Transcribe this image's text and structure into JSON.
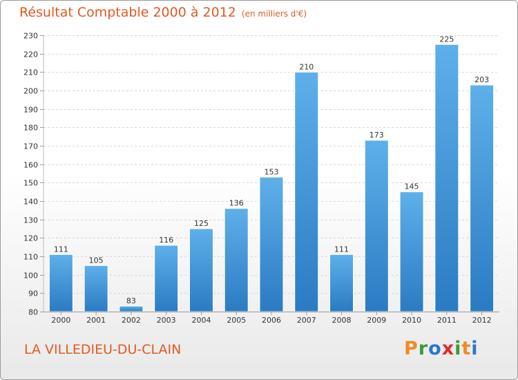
{
  "header": {
    "title": "Résultat Comptable 2000 à 2012",
    "subtitle": "(en milliers d'€)"
  },
  "footer": {
    "city": "LA VILLEDIEU-DU-CLAIN",
    "logo": {
      "letters": [
        "P",
        "r",
        "o",
        "x",
        "i",
        "t",
        "i"
      ],
      "colors": [
        "#f08a24",
        "#3a9a3a",
        "#2a78c8",
        "#e02a2a",
        "#3a9a3a",
        "#f08a24",
        "#2a78c8"
      ]
    }
  },
  "chart_data": {
    "type": "bar",
    "categories": [
      "2000",
      "2001",
      "2002",
      "2003",
      "2004",
      "2005",
      "2006",
      "2007",
      "2008",
      "2009",
      "2010",
      "2011",
      "2012"
    ],
    "values": [
      111,
      105,
      83,
      116,
      125,
      136,
      153,
      210,
      111,
      173,
      145,
      225,
      203
    ],
    "data_labels": [
      "111",
      "105",
      "83",
      "116",
      "125",
      "136",
      "153",
      "210",
      "111",
      "173",
      "145",
      "225",
      "203"
    ],
    "ylim": [
      80,
      230
    ],
    "yticks": [
      80,
      90,
      100,
      110,
      120,
      130,
      140,
      150,
      160,
      170,
      180,
      190,
      200,
      210,
      220,
      230
    ],
    "grid": true,
    "bar_color_top": "#5eb0ea",
    "bar_color_bottom": "#2a7bc2"
  }
}
